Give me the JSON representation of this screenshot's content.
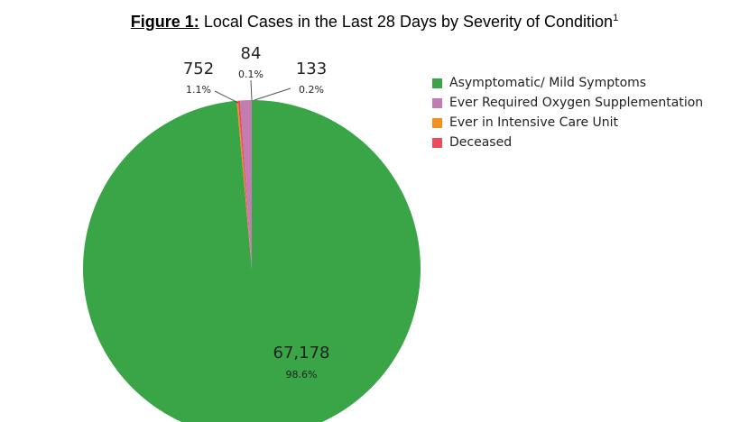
{
  "figure": {
    "label": "Figure 1:",
    "title": " Local Cases in the Last 28 Days by Severity of Condition",
    "footnote_marker": "1"
  },
  "chart_data": {
    "type": "pie",
    "title": "Figure 1: Local Cases in the Last 28 Days by Severity of Condition",
    "legend_position": "right",
    "slices": [
      {
        "name": "Asymptomatic/ Mild Symptoms",
        "value": 67178,
        "value_label": "67,178",
        "percent_label": "98.6%",
        "color": "#3aa547"
      },
      {
        "name": "Ever Required Oxygen Supplementation",
        "value": 752,
        "value_label": "752",
        "percent_label": "1.1%",
        "color": "#c17cb2"
      },
      {
        "name": "Ever in Intensive Care Unit",
        "value": 84,
        "value_label": "84",
        "percent_label": "0.1%",
        "color": "#f4901e"
      },
      {
        "name": "Deceased",
        "value": 133,
        "value_label": "133",
        "percent_label": "0.2%",
        "color": "#ef4a5c"
      }
    ]
  }
}
